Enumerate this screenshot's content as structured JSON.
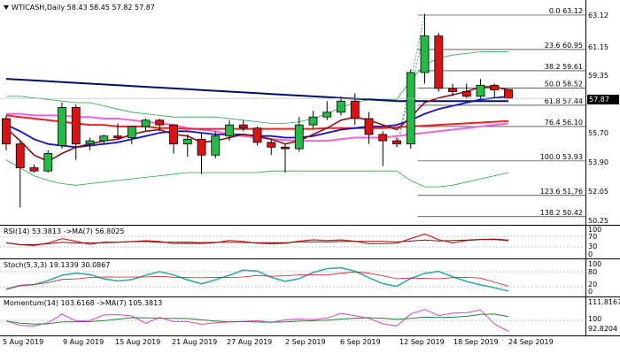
{
  "main": {
    "symbol": "WTICASH,Daily",
    "ohlc": "58.43 58.45 57.82 57.87",
    "last_price": "57.87",
    "y_labels": [
      "63.12",
      "61.15",
      "59.35",
      "57.55",
      "55.70",
      "53.90",
      "52.05",
      "50.25"
    ],
    "fib_labels": [
      "0.0 63.12",
      "23.6 60.95",
      "38.2 59.61",
      "50.0 58.52",
      "61.8 57.44",
      "76.4 56.10",
      "100.0 53.93",
      "123.6 51.76",
      "138.2 50.42"
    ]
  },
  "x_labels": [
    "5 Aug 2019",
    "9 Aug 2019",
    "15 Aug 2019",
    "21 Aug 2019",
    "27 Aug 2019",
    "2 Sep 2019",
    "6 Sep 2019",
    "12 Sep 2019",
    "18 Sep 2019",
    "24 Sep 2019"
  ],
  "rsi": {
    "label": "RSI(14) 53.3813  ->MA(7) 56.8025",
    "y_labels": [
      "100",
      "70",
      "30",
      "0"
    ]
  },
  "stoch": {
    "label": "Stoch(5,3,3) 19.1339 30.0867",
    "y_labels": [
      "100",
      "80",
      "20",
      "0"
    ]
  },
  "momentum": {
    "label": "Momentum(14) 103.6168  ->MA(7) 105.3813",
    "y_labels": [
      "111.8167",
      "100",
      "92.8204"
    ]
  },
  "colors": {
    "bull": "#22bb44",
    "bear": "#dd1111",
    "ma_blue": "#1111cc",
    "ma_navy": "#001166",
    "ma_brown": "#881111",
    "ma_red": "#ee2222",
    "ma_pink": "#ee66dd",
    "bollinger": "#22aa44",
    "osc_teal": "#33aaaa",
    "osc_red": "#cc2222",
    "osc_magenta": "#dd44cc",
    "osc_green": "#228833"
  },
  "chart_data": {
    "type": "candlestick",
    "series_name": "WTICASH,Daily",
    "x": [
      "5 Aug",
      "6 Aug",
      "7 Aug",
      "8 Aug",
      "9 Aug",
      "12 Aug",
      "13 Aug",
      "14 Aug",
      "15 Aug",
      "16 Aug",
      "19 Aug",
      "20 Aug",
      "21 Aug",
      "22 Aug",
      "23 Aug",
      "26 Aug",
      "27 Aug",
      "28 Aug",
      "29 Aug",
      "30 Aug",
      "2 Sep",
      "3 Sep",
      "4 Sep",
      "5 Sep",
      "6 Sep",
      "9 Sep",
      "10 Sep",
      "11 Sep",
      "12 Sep",
      "13 Sep",
      "16 Sep",
      "17 Sep",
      "18 Sep",
      "19 Sep",
      "20 Sep",
      "23 Sep",
      "24 Sep"
    ],
    "open": [
      56.6,
      55.0,
      53.5,
      53.3,
      54.9,
      57.3,
      55.0,
      55.2,
      55.5,
      55.4,
      56.1,
      56.5,
      56.2,
      55.0,
      55.3,
      54.3,
      55.5,
      56.2,
      56.0,
      55.1,
      54.8,
      54.7,
      56.2,
      56.7,
      57.0,
      57.7,
      56.6,
      55.6,
      55.2,
      55.0,
      59.5,
      61.8,
      58.5,
      58.3,
      58.0,
      58.7,
      58.43
    ],
    "high": [
      56.8,
      55.2,
      53.7,
      54.6,
      57.6,
      57.5,
      55.4,
      55.6,
      56.3,
      56.0,
      56.6,
      56.6,
      56.2,
      55.6,
      55.7,
      55.8,
      56.5,
      56.5,
      56.1,
      55.3,
      55.0,
      56.7,
      57.1,
      57.7,
      58.0,
      58.2,
      57.0,
      55.8,
      55.4,
      59.7,
      63.2,
      62.0,
      58.8,
      58.8,
      59.1,
      58.8,
      58.45
    ],
    "low": [
      54.6,
      51.0,
      53.2,
      53.2,
      54.7,
      54.0,
      54.6,
      55.0,
      55.3,
      55.0,
      55.8,
      55.8,
      54.4,
      54.2,
      53.1,
      54.1,
      55.2,
      55.8,
      54.9,
      54.3,
      53.2,
      54.5,
      56.0,
      56.5,
      56.8,
      56.2,
      55.0,
      53.6,
      54.8,
      54.7,
      58.8,
      58.3,
      58.0,
      57.9,
      57.8,
      57.9,
      57.82
    ],
    "close": [
      55.0,
      53.5,
      53.3,
      54.4,
      57.3,
      55.0,
      55.2,
      55.5,
      55.4,
      56.1,
      56.5,
      56.2,
      55.0,
      55.3,
      54.3,
      55.5,
      56.2,
      56.0,
      55.1,
      54.8,
      54.7,
      56.2,
      56.7,
      57.0,
      57.7,
      56.6,
      55.6,
      55.2,
      55.0,
      59.5,
      61.8,
      58.5,
      58.3,
      58.0,
      58.7,
      58.4,
      57.87
    ],
    "ylim": [
      50.0,
      63.6
    ],
    "fibonacci": [
      {
        "level": "0.0",
        "value": 63.12
      },
      {
        "level": "23.6",
        "value": 60.95
      },
      {
        "level": "38.2",
        "value": 59.61
      },
      {
        "level": "50.0",
        "value": 58.52
      },
      {
        "level": "61.8",
        "value": 57.44
      },
      {
        "level": "76.4",
        "value": 56.1
      },
      {
        "level": "100.0",
        "value": 53.93
      },
      {
        "level": "123.6",
        "value": 51.76
      },
      {
        "level": "138.2",
        "value": 50.42
      }
    ],
    "ma_navy": [
      59.1,
      59.05,
      59.0,
      58.95,
      58.9,
      58.85,
      58.8,
      58.75,
      58.7,
      58.65,
      58.6,
      58.55,
      58.5,
      58.45,
      58.4,
      58.35,
      58.3,
      58.25,
      58.2,
      58.15,
      58.1,
      58.05,
      58.0,
      57.95,
      57.9,
      57.85,
      57.8,
      57.75,
      57.7,
      57.7,
      57.7,
      57.7,
      57.7,
      57.7,
      57.7,
      57.7,
      57.7
    ],
    "ma_red": [
      56.8,
      56.7,
      56.6,
      56.5,
      56.4,
      56.3,
      56.2,
      56.2,
      56.1,
      56.1,
      56.1,
      56.0,
      56.0,
      55.95,
      55.95,
      55.95,
      55.95,
      55.95,
      55.95,
      55.95,
      55.95,
      55.95,
      55.95,
      56.0,
      56.0,
      56.0,
      56.0,
      56.0,
      56.05,
      56.1,
      56.15,
      56.2,
      56.25,
      56.3,
      56.35,
      56.4,
      56.45
    ],
    "ma_pink": [
      56.9,
      56.9,
      56.8,
      56.8,
      56.8,
      56.7,
      56.7,
      56.6,
      56.6,
      56.5,
      56.4,
      56.3,
      56.2,
      56.0,
      55.9,
      55.8,
      55.6,
      55.5,
      55.4,
      55.3,
      55.25,
      55.2,
      55.2,
      55.2,
      55.3,
      55.4,
      55.4,
      55.4,
      55.5,
      55.6,
      55.7,
      55.8,
      55.9,
      56.0,
      56.1,
      56.2,
      56.3
    ],
    "ma_blue": [
      56.2,
      55.8,
      55.3,
      55.0,
      54.9,
      54.8,
      54.9,
      55.0,
      55.1,
      55.3,
      55.5,
      55.7,
      55.8,
      55.8,
      55.7,
      55.6,
      55.6,
      55.6,
      55.5,
      55.5,
      55.4,
      55.4,
      55.5,
      55.7,
      55.9,
      56.0,
      56.1,
      56.1,
      56.2,
      56.5,
      56.9,
      57.2,
      57.4,
      57.6,
      57.8,
      57.9,
      58.0
    ],
    "ma_brown": [
      56.0,
      55.2,
      54.3,
      53.9,
      54.4,
      54.8,
      55.0,
      55.2,
      55.3,
      55.6,
      55.8,
      55.9,
      55.6,
      55.5,
      55.1,
      55.2,
      55.4,
      55.6,
      55.5,
      55.3,
      55.0,
      55.2,
      55.6,
      56.0,
      56.5,
      56.7,
      56.5,
      56.2,
      55.9,
      56.7,
      57.6,
      57.9,
      58.1,
      58.3,
      58.6,
      58.6,
      58.4
    ],
    "bb_upper": [
      58.0,
      58.0,
      57.9,
      57.8,
      57.7,
      57.6,
      57.6,
      57.4,
      57.2,
      57.0,
      56.9,
      56.8,
      56.7,
      56.7,
      56.7,
      56.7,
      56.6,
      56.5,
      56.4,
      56.3,
      56.3,
      56.4,
      56.6,
      56.9,
      57.3,
      57.6,
      57.8,
      57.8,
      57.8,
      59.0,
      60.0,
      60.4,
      60.6,
      60.7,
      60.8,
      60.8,
      60.8
    ],
    "bb_lower": [
      54.0,
      53.5,
      53.0,
      52.7,
      52.5,
      52.4,
      52.5,
      52.6,
      52.7,
      52.8,
      52.9,
      53.0,
      53.1,
      53.2,
      53.2,
      53.2,
      53.2,
      53.2,
      53.2,
      53.3,
      53.3,
      53.3,
      53.3,
      53.3,
      53.3,
      53.3,
      53.3,
      53.3,
      53.3,
      52.7,
      52.3,
      52.3,
      52.4,
      52.6,
      52.8,
      53.0,
      53.2
    ]
  }
}
